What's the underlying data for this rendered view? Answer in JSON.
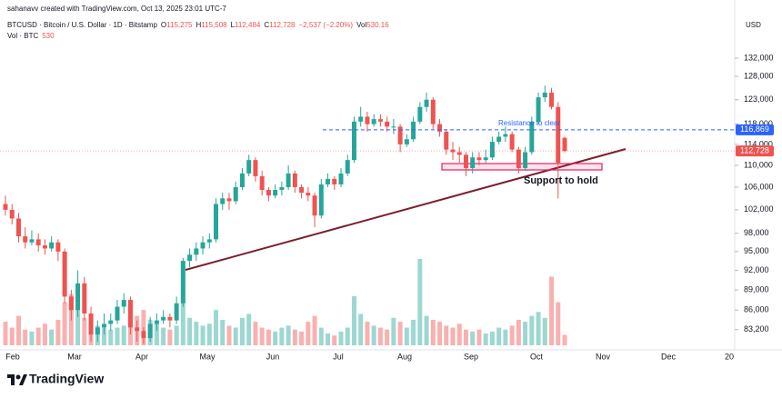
{
  "header": {
    "credit": "sahanavv created with TradingView.com, Oct 13, 2025 23:01 UTC-7",
    "symbol": "BTCUSD · Bitcoin / U.S. Dollar · 1D · Bitstamp",
    "ohlc": [
      {
        "label": "O",
        "value": "115,275"
      },
      {
        "label": "H",
        "value": "115,508"
      },
      {
        "label": "L",
        "value": "112,484"
      },
      {
        "label": "C",
        "value": "112,728"
      }
    ],
    "change": "−2,537 (−2.20%)",
    "vol_label": "Vol",
    "vol_value": "530.16",
    "vol_row_label": "Vol · BTC"
  },
  "logo": "TradingView",
  "chart_data": {
    "type": "candlestick",
    "currency": "USD",
    "log_scale": true,
    "up_color": "#26a69a",
    "down_color": "#ef5350",
    "x_labels": [
      "Feb",
      "Mar",
      "Apr",
      "May",
      "Jun",
      "Jul",
      "Aug",
      "Sep",
      "Oct",
      "Nov",
      "Dec",
      "20"
    ],
    "ylim": [
      81000,
      137000
    ],
    "yticks": [
      {
        "value": 132000,
        "label": "132,000"
      },
      {
        "value": 128000,
        "label": "128,000"
      },
      {
        "value": 123000,
        "label": "123,000"
      },
      {
        "value": 118000,
        "label": "118,000"
      },
      {
        "value": 114000,
        "label": "114,000"
      },
      {
        "value": 110000,
        "label": "110,000"
      },
      {
        "value": 106000,
        "label": "106,000"
      },
      {
        "value": 102000,
        "label": "102,000"
      },
      {
        "value": 98000,
        "label": "98,000"
      },
      {
        "value": 95000,
        "label": "95,000"
      },
      {
        "value": 92000,
        "label": "92,000"
      },
      {
        "value": 89000,
        "label": "89,000"
      },
      {
        "value": 86000,
        "label": "86,000"
      },
      {
        "value": 83200,
        "label": "83,200"
      }
    ],
    "resistance": {
      "value": 116869,
      "label": "116,869",
      "text": "Resistance to clear"
    },
    "support_text": "Support to hold",
    "price_label": "112,728",
    "candles": [
      [
        103000,
        104500,
        101000,
        102000
      ],
      [
        102000,
        103000,
        99500,
        100500
      ],
      [
        100500,
        101500,
        96500,
        97500
      ],
      [
        97500,
        99000,
        95500,
        96500
      ],
      [
        96500,
        98500,
        96000,
        97000
      ],
      [
        97000,
        98000,
        95000,
        96000
      ],
      [
        96000,
        97000,
        94500,
        95500
      ],
      [
        95500,
        97500,
        95000,
        96500
      ],
      [
        96500,
        97000,
        93500,
        95000
      ],
      [
        95000,
        95500,
        87000,
        88000
      ],
      [
        88000,
        89000,
        84500,
        86000
      ],
      [
        86000,
        92000,
        85000,
        90000
      ],
      [
        90000,
        91000,
        84500,
        85500
      ],
      [
        85500,
        86500,
        81500,
        82500
      ],
      [
        82500,
        84500,
        81500,
        83500
      ],
      [
        83500,
        85500,
        82500,
        84000
      ],
      [
        84000,
        85500,
        83000,
        84500
      ],
      [
        84500,
        87500,
        84000,
        86500
      ],
      [
        86500,
        88500,
        85500,
        87500
      ],
      [
        87500,
        88000,
        82500,
        83500
      ],
      [
        83500,
        84500,
        81500,
        83000
      ],
      [
        83000,
        83500,
        81200,
        82000
      ],
      [
        82000,
        85000,
        81500,
        84000
      ],
      [
        84000,
        85500,
        83000,
        84500
      ],
      [
        84500,
        86000,
        84000,
        85000
      ],
      [
        85000,
        85500,
        83500,
        84500
      ],
      [
        84500,
        88000,
        84000,
        87000
      ],
      [
        87000,
        94000,
        86500,
        93500
      ],
      [
        93500,
        95500,
        92500,
        94500
      ],
      [
        94500,
        96500,
        93500,
        95500
      ],
      [
        95500,
        97500,
        94500,
        96500
      ],
      [
        96500,
        98000,
        95500,
        97000
      ],
      [
        97000,
        104000,
        96500,
        103000
      ],
      [
        103000,
        105000,
        102000,
        104000
      ],
      [
        104000,
        105000,
        102000,
        103500
      ],
      [
        103500,
        107000,
        103000,
        106000
      ],
      [
        106000,
        109500,
        105500,
        108500
      ],
      [
        108500,
        112000,
        108000,
        111000
      ],
      [
        111000,
        111500,
        107000,
        108000
      ],
      [
        108000,
        109000,
        104500,
        105500
      ],
      [
        105500,
        106000,
        103500,
        104500
      ],
      [
        104500,
        106500,
        104000,
        105500
      ],
      [
        105500,
        107000,
        104500,
        106000
      ],
      [
        106000,
        110000,
        105500,
        108500
      ],
      [
        108500,
        109000,
        105000,
        106000
      ],
      [
        106000,
        106500,
        104000,
        105000
      ],
      [
        105000,
        106000,
        103500,
        104500
      ],
      [
        104500,
        105000,
        99000,
        101000
      ],
      [
        101000,
        107500,
        100500,
        106500
      ],
      [
        106500,
        108500,
        106000,
        107500
      ],
      [
        107500,
        108000,
        105500,
        106500
      ],
      [
        106500,
        109500,
        106000,
        108500
      ],
      [
        108500,
        112000,
        108000,
        111000
      ],
      [
        111000,
        119500,
        110500,
        118500
      ],
      [
        118500,
        121500,
        117500,
        119500
      ],
      [
        119500,
        120500,
        116500,
        118000
      ],
      [
        118000,
        120000,
        117500,
        119000
      ],
      [
        119000,
        120000,
        117500,
        118500
      ],
      [
        118500,
        119500,
        116500,
        117500
      ],
      [
        117500,
        119000,
        116000,
        117500
      ],
      [
        117500,
        118000,
        112500,
        114000
      ],
      [
        114000,
        116000,
        113500,
        115000
      ],
      [
        115000,
        119500,
        114500,
        118500
      ],
      [
        118500,
        122500,
        118000,
        121500
      ],
      [
        121500,
        124500,
        120500,
        123000
      ],
      [
        123000,
        123500,
        117000,
        118000
      ],
      [
        118000,
        119000,
        115500,
        116500
      ],
      [
        116500,
        117000,
        112000,
        113000
      ],
      [
        113000,
        114500,
        111000,
        112500
      ],
      [
        112500,
        113500,
        110500,
        112000
      ],
      [
        112000,
        112500,
        108000,
        109500
      ],
      [
        109500,
        112500,
        108500,
        111500
      ],
      [
        111500,
        112500,
        110000,
        111000
      ],
      [
        111000,
        113000,
        110500,
        111500
      ],
      [
        111500,
        115500,
        111000,
        114500
      ],
      [
        114500,
        116500,
        114000,
        115500
      ],
      [
        115500,
        117500,
        114500,
        116000
      ],
      [
        116000,
        116500,
        112500,
        113000
      ],
      [
        113000,
        113500,
        108500,
        109500
      ],
      [
        109500,
        113500,
        109000,
        112500
      ],
      [
        112500,
        119500,
        112000,
        118500
      ],
      [
        118500,
        124500,
        118000,
        123500
      ],
      [
        123500,
        126000,
        122500,
        124500
      ],
      [
        124500,
        125500,
        121000,
        121500
      ],
      [
        121500,
        122500,
        104000,
        110500
      ],
      [
        115275,
        115508,
        112484,
        112728
      ]
    ],
    "volumes": [
      1200,
      900,
      1500,
      800,
      700,
      900,
      1100,
      800,
      1300,
      2200,
      2600,
      1800,
      1400,
      1200,
      1000,
      900,
      800,
      900,
      1000,
      1100,
      1500,
      1800,
      1300,
      1100,
      900,
      800,
      1000,
      2400,
      1400,
      1200,
      1000,
      1100,
      1800,
      1300,
      1000,
      900,
      1400,
      1600,
      1200,
      900,
      800,
      700,
      900,
      1000,
      800,
      700,
      1200,
      1500,
      900,
      600,
      500,
      700,
      900,
      2500,
      1600,
      1200,
      1000,
      900,
      800,
      1400,
      1200,
      900,
      1300,
      4400,
      1500,
      1300,
      1200,
      1000,
      900,
      1100,
      800,
      700,
      800,
      600,
      700,
      900,
      800,
      1000,
      1300,
      1200,
      1500,
      1700,
      1400,
      3500,
      2200,
      530
    ]
  }
}
